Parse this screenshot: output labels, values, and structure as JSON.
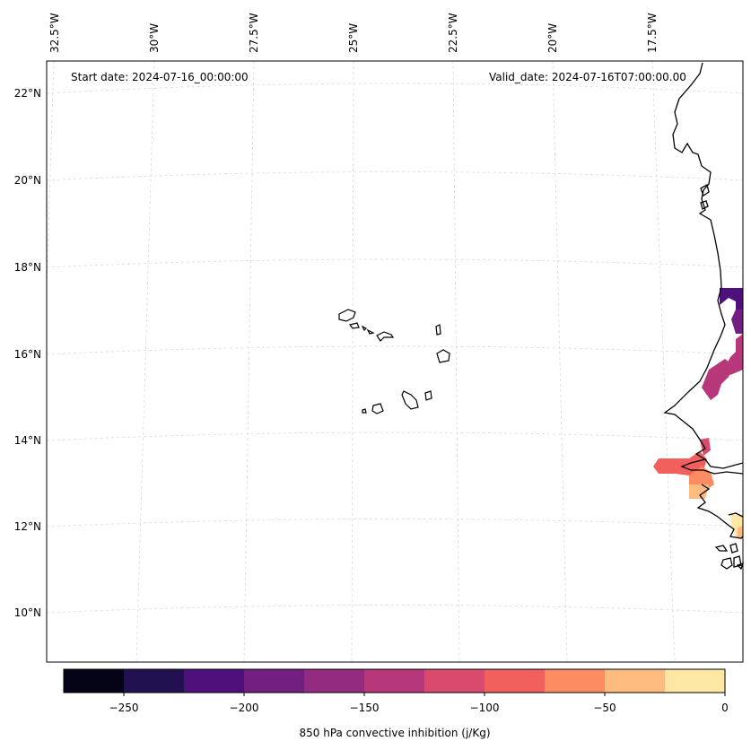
{
  "header": {
    "start_date": "Start date: 2024-07-16_00:00:00",
    "valid_date": "Valid_date: 2024-07-16T07:00:00.00"
  },
  "map": {
    "lon_labels": [
      "32.5°W",
      "30°W",
      "27.5°W",
      "25°W",
      "22.5°W",
      "20°W",
      "17.5°W"
    ],
    "lat_labels": [
      "22°N",
      "20°N",
      "18°N",
      "16°N",
      "14°N",
      "12°N",
      "10°N"
    ],
    "gridline_color": "#d9d9d9",
    "coastline_color": "#000000",
    "features": [
      "Cape Verde islands",
      "West African coastline (Mauritania, Senegal, The Gambia, Guinea-Bissau)"
    ]
  },
  "colorbar": {
    "label": "850 hPa convective inhibition (j/Kg)",
    "ticks": [
      "−250",
      "−200",
      "−150",
      "−100",
      "−50",
      "0"
    ],
    "colors": [
      "#050416",
      "#221150",
      "#4e117b",
      "#721f81",
      "#932b80",
      "#b6377a",
      "#da4a6f",
      "#f1605d",
      "#fe8c63",
      "#febb80",
      "#fde7a4"
    ],
    "range": [
      -275,
      0
    ],
    "step": 25
  },
  "chart_data": {
    "type": "heatmap",
    "title": "",
    "variable": "850 hPa convective inhibition",
    "units": "j/Kg",
    "levels": [
      -275,
      -250,
      -225,
      -200,
      -175,
      -150,
      -125,
      -100,
      -75,
      -50,
      -25,
      0
    ],
    "colormap": "magma",
    "x_range_deg": [
      -33,
      -15.5
    ],
    "y_range_deg": [
      9,
      22.5
    ],
    "regions": [
      {
        "name": "coast off Mauritania near 17.3N 16.1W",
        "value_range": [
          -225,
          -200
        ]
      },
      {
        "name": "coast near 16.6N 16.3W",
        "value_range": [
          -175,
          -150
        ]
      },
      {
        "name": "Senegal coast near 15.3N 16.7W",
        "value_range": [
          -150,
          -125
        ]
      },
      {
        "name": "near 14N 17.3W",
        "value_range": [
          -125,
          -100
        ]
      },
      {
        "name": "Gambia region near 13.2N 17.3W",
        "value_range": [
          -100,
          -75
        ]
      },
      {
        "name": "south of Gambia near 12.9N 16.9W",
        "value_range": [
          -50,
          -25
        ]
      },
      {
        "name": "Guinea-Bissau coast near 12N 15.8W",
        "value_range": [
          -25,
          0
        ]
      }
    ]
  }
}
